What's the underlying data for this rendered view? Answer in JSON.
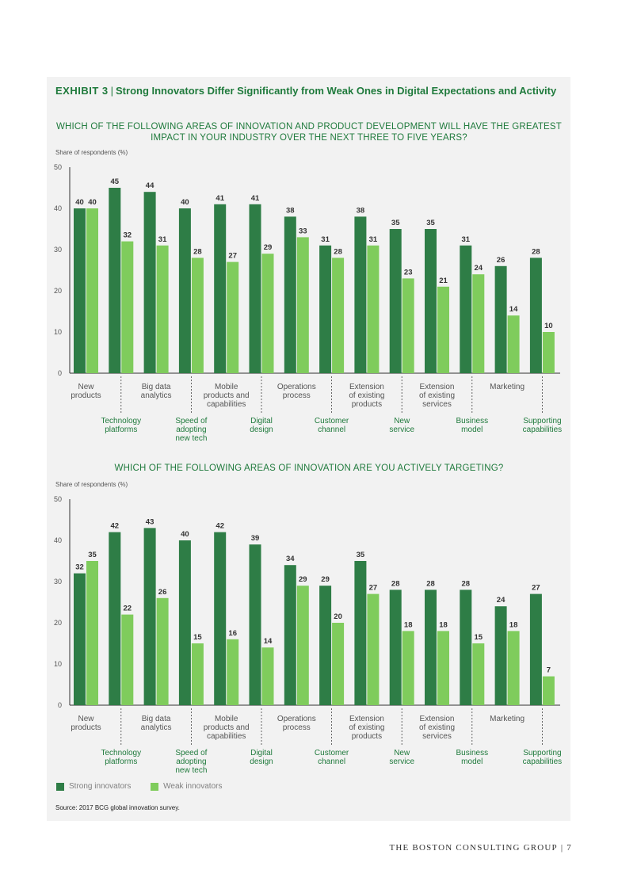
{
  "exhibit": {
    "label": "EXHIBIT 3",
    "separator": "|",
    "title": "Strong Innovators Differ Significantly from Weak Ones in Digital Expectations and Activity"
  },
  "colors": {
    "strong": "#2e7d46",
    "weak": "#7fcc5c",
    "title": "#1f7a3c"
  },
  "legend": {
    "strong": "Strong innovators",
    "weak": "Weak innovators"
  },
  "source": "Source: 2017 BCG global innovation survey.",
  "footer": {
    "publisher": "THE BOSTON CONSULTING GROUP",
    "separator": "|",
    "page": "7"
  },
  "chart_data": [
    {
      "type": "bar",
      "title": "WHICH OF THE FOLLOWING AREAS OF INNOVATION AND PRODUCT DEVELOPMENT WILL HAVE THE GREATEST IMPACT IN YOUR INDUSTRY OVER THE NEXT THREE TO FIVE YEARS?",
      "ylabel": "Share of respondents (%)",
      "ylim": [
        0,
        50
      ],
      "yticks": [
        0,
        10,
        20,
        30,
        40,
        50
      ],
      "categories": [
        "New products",
        "Technology platforms",
        "Big data analytics",
        "Speed of adopting new tech",
        "Mobile products and capabilities",
        "Digital design",
        "Operations process",
        "Customer channel",
        "Extension of existing products",
        "New service",
        "Extension of existing services",
        "Business model",
        "Marketing",
        "Supporting capabilities"
      ],
      "category_label_lines": [
        [
          "New",
          "products"
        ],
        [
          "Technology",
          "platforms"
        ],
        [
          "Big data",
          "analytics"
        ],
        [
          "Speed of",
          "adopting",
          "new tech"
        ],
        [
          "Mobile",
          "products and",
          "capabilities"
        ],
        [
          "Digital",
          "design"
        ],
        [
          "Operations",
          "process"
        ],
        [
          "Customer",
          "channel"
        ],
        [
          "Extension",
          "of existing",
          "products"
        ],
        [
          "New",
          "service"
        ],
        [
          "Extension",
          "of existing",
          "services"
        ],
        [
          "Business",
          "model"
        ],
        [
          "Marketing"
        ],
        [
          "Supporting",
          "capabilities"
        ]
      ],
      "series": [
        {
          "name": "Strong innovators",
          "values": [
            40,
            45,
            44,
            40,
            41,
            41,
            38,
            31,
            38,
            35,
            35,
            31,
            26,
            28
          ]
        },
        {
          "name": "Weak innovators",
          "values": [
            40,
            32,
            31,
            28,
            27,
            29,
            33,
            28,
            31,
            23,
            21,
            24,
            14,
            10
          ]
        }
      ]
    },
    {
      "type": "bar",
      "title": "WHICH OF THE FOLLOWING AREAS OF INNOVATION ARE YOU ACTIVELY TARGETING?",
      "ylabel": "Share of respondents (%)",
      "ylim": [
        0,
        50
      ],
      "yticks": [
        0,
        10,
        20,
        30,
        40,
        50
      ],
      "categories": [
        "New products",
        "Technology platforms",
        "Big data analytics",
        "Speed of adopting new tech",
        "Mobile products and capabilities",
        "Digital design",
        "Operations process",
        "Customer channel",
        "Extension of existing products",
        "New service",
        "Extension of existing services",
        "Business model",
        "Marketing",
        "Supporting capabilities"
      ],
      "category_label_lines": [
        [
          "New",
          "products"
        ],
        [
          "Technology",
          "platforms"
        ],
        [
          "Big data",
          "analytics"
        ],
        [
          "Speed of",
          "adopting",
          "new tech"
        ],
        [
          "Mobile",
          "products and",
          "capabilities"
        ],
        [
          "Digital",
          "design"
        ],
        [
          "Operations",
          "process"
        ],
        [
          "Customer",
          "channel"
        ],
        [
          "Extension",
          "of existing",
          "products"
        ],
        [
          "New",
          "service"
        ],
        [
          "Extension",
          "of existing",
          "services"
        ],
        [
          "Business",
          "model"
        ],
        [
          "Marketing"
        ],
        [
          "Supporting",
          "capabilities"
        ]
      ],
      "series": [
        {
          "name": "Strong innovators",
          "values": [
            32,
            42,
            43,
            40,
            42,
            39,
            34,
            29,
            35,
            28,
            28,
            28,
            24,
            27
          ]
        },
        {
          "name": "Weak innovators",
          "values": [
            35,
            22,
            26,
            15,
            16,
            14,
            29,
            20,
            27,
            18,
            18,
            15,
            18,
            7
          ]
        }
      ]
    }
  ]
}
